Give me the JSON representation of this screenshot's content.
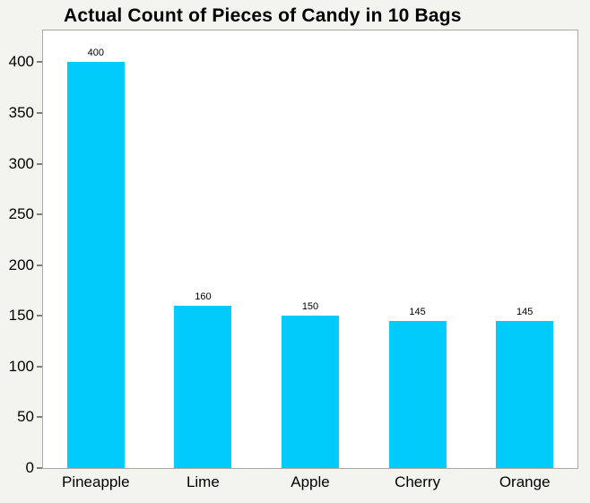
{
  "title": "Actual Count of Pieces of Candy in 10 Bags",
  "chart_data": {
    "type": "bar",
    "title": "Actual Count of Pieces of Candy in 10 Bags",
    "categories": [
      "Pineapple",
      "Lime",
      "Apple",
      "Cherry",
      "Orange"
    ],
    "values": [
      400,
      160,
      150,
      145,
      145
    ],
    "bar_value_labels": [
      "400",
      "160",
      "150",
      "145",
      "145"
    ],
    "xlabel": "",
    "ylabel": "",
    "y_ticks": [
      0,
      50,
      100,
      150,
      200,
      250,
      300,
      350,
      400
    ],
    "ylim": [
      0,
      433
    ],
    "grid": false,
    "legend_position": "none",
    "colors": {
      "bar": "#00CBFA",
      "page_background": "#f4f4ee",
      "plot_background": "#ffffff",
      "plot_border": "#a9a9a9",
      "tick_mark": "#7f7f7f",
      "text": "#000000"
    }
  }
}
